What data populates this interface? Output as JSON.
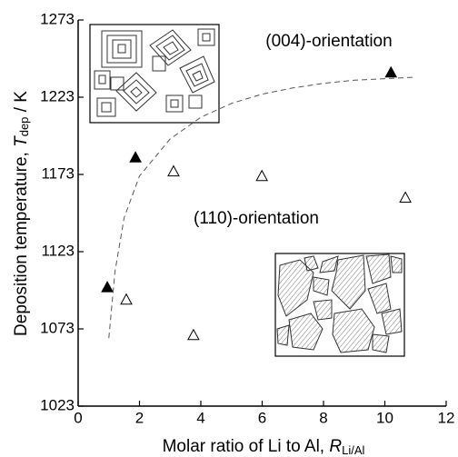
{
  "chart_data": {
    "type": "scatter",
    "xlabel": {
      "text": "Molar ratio of Li to Al, ",
      "symbol": "R",
      "subscript": "Li/Al"
    },
    "ylabel": {
      "text": "Deposition temperature, ",
      "symbol": "T",
      "subscript": "dep",
      "unit": " / K"
    },
    "annotations": [
      "(004)-orientation",
      "(110)-orientation"
    ],
    "xlim": [
      0,
      12
    ],
    "xticks": [
      0,
      2,
      4,
      6,
      8,
      10,
      12
    ],
    "ylim": [
      1023,
      1273
    ],
    "yticks": [
      1023,
      1073,
      1123,
      1173,
      1223,
      1273
    ],
    "series": [
      {
        "marker": "filled-triangle",
        "color": "#000000",
        "x": [
          0.95,
          1.87,
          10.2
        ],
        "values": [
          1100,
          1184,
          1239
        ]
      },
      {
        "marker": "open-triangle",
        "color": "#000000",
        "x": [
          1.57,
          3.11,
          3.76,
          5.99,
          10.67
        ],
        "values": [
          1092,
          1175,
          1069,
          1172,
          1158
        ]
      },
      {
        "marker": "dashed-line",
        "color": "#555555",
        "x": [
          1.0,
          1.2,
          1.5,
          2,
          3,
          4,
          5,
          6,
          7,
          8,
          9,
          10,
          11
        ],
        "values": [
          1067,
          1110,
          1145,
          1172,
          1196,
          1210,
          1219,
          1225,
          1229,
          1232,
          1234,
          1235,
          1236
        ]
      }
    ]
  }
}
